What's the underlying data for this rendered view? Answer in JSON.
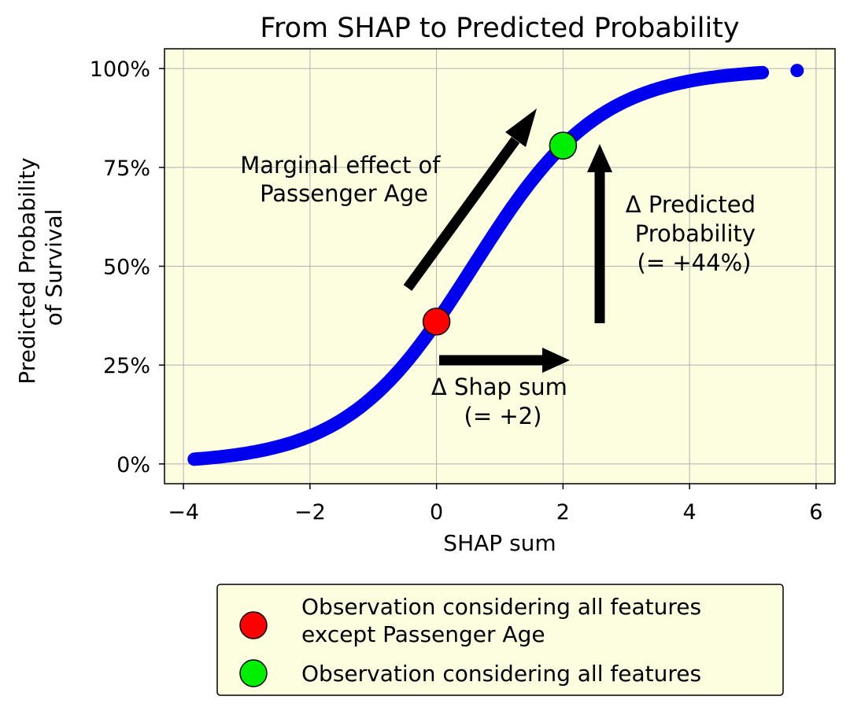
{
  "chart_data": {
    "type": "scatter",
    "title": "From SHAP to Predicted Probability",
    "xlabel": "SHAP sum",
    "ylabel_lines": [
      "Predicted Probability",
      "of Survival"
    ],
    "xlim": [
      -4.3,
      6.3
    ],
    "ylim": [
      -0.05,
      1.05
    ],
    "xticks": [
      -4,
      -2,
      0,
      2,
      4,
      6
    ],
    "xtick_labels": [
      "−4",
      "−2",
      "0",
      "2",
      "4",
      "6"
    ],
    "yticks": [
      0,
      0.25,
      0.5,
      0.75,
      1.0
    ],
    "ytick_labels": [
      "0%",
      "25%",
      "50%",
      "75%",
      "100%"
    ],
    "grid": true,
    "background": "#fdfde0",
    "curve": {
      "color": "#0000ee",
      "function": "sigmoid(x - 0.58)",
      "x_min": -3.8,
      "x_max": 5.15,
      "outliers": [
        {
          "x": -3.83,
          "y": 0.012
        },
        {
          "x": 5.7,
          "y": 0.995
        }
      ]
    },
    "highlight_points": [
      {
        "label": "Observation considering all features\nexcept Passenger Age",
        "x": 0.0,
        "y": 0.36,
        "color": "#ff0000"
      },
      {
        "label": "Observation considering all features",
        "x": 2.0,
        "y": 0.805,
        "color": "#00ee00"
      }
    ],
    "annotations": {
      "marginal_effect": [
        "Marginal effect of",
        "Passenger Age"
      ],
      "delta_prob": [
        "Δ Predicted",
        "Probability",
        "(= +44%)"
      ],
      "delta_shap": [
        "Δ Shap sum",
        "(= +2)"
      ]
    },
    "legend": {
      "placement": "below",
      "entries": [
        {
          "lines": [
            "Observation considering all features",
            "except Passenger Age"
          ],
          "color": "#ff0000"
        },
        {
          "lines": [
            "Observation considering all features"
          ],
          "color": "#00ee00"
        }
      ]
    }
  }
}
